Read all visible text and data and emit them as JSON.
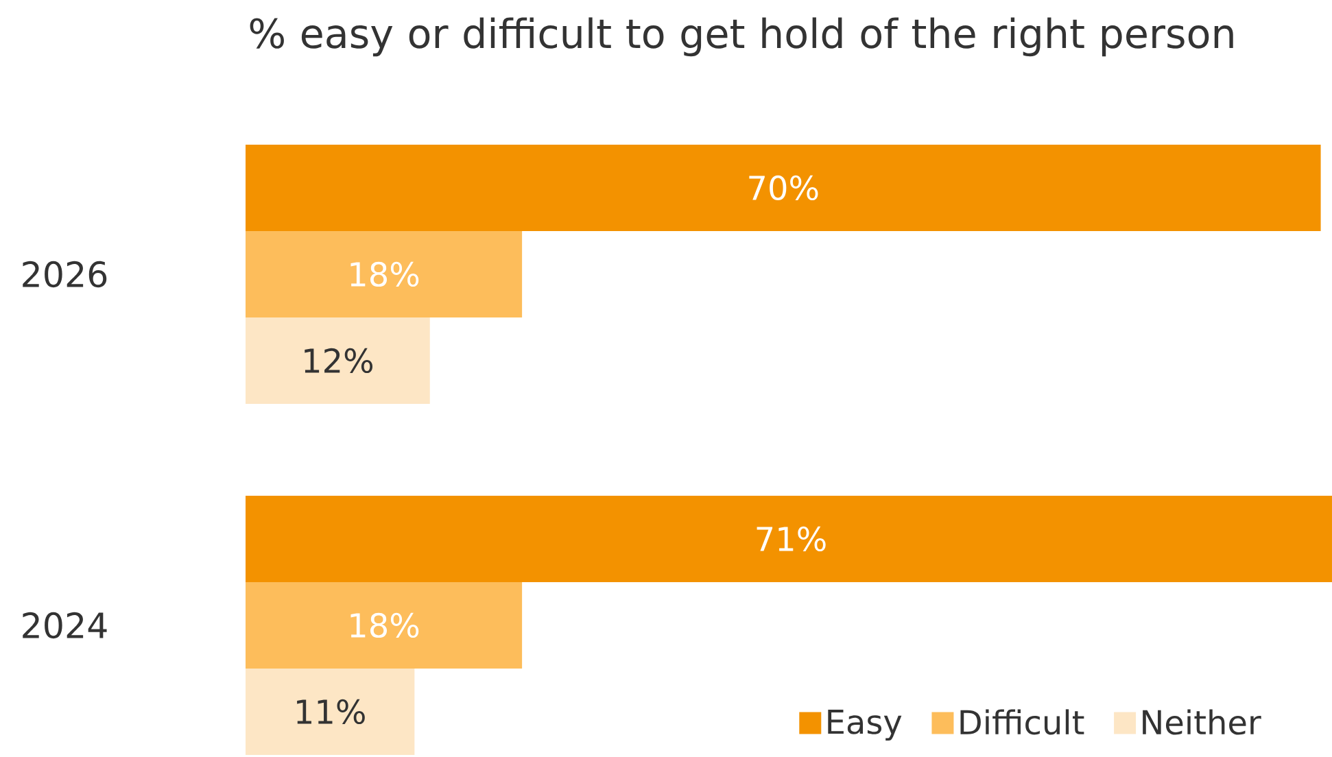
{
  "chart_data": {
    "type": "bar",
    "orientation": "horizontal",
    "title": "% easy or difficult to get hold of the right person",
    "categories": [
      "2026",
      "2024"
    ],
    "series": [
      {
        "name": "Easy",
        "color": "#f39200",
        "values": [
          70,
          71
        ],
        "value_labels": [
          "70%",
          "71%"
        ]
      },
      {
        "name": "Difficult",
        "color": "#fdbd5b",
        "values": [
          18,
          18
        ],
        "value_labels": [
          "18%",
          "18%"
        ]
      },
      {
        "name": "Neither",
        "color": "#fde6c5",
        "values": [
          12,
          11
        ],
        "value_labels": [
          "12%",
          "11%"
        ]
      }
    ],
    "legend": "bottom right"
  }
}
